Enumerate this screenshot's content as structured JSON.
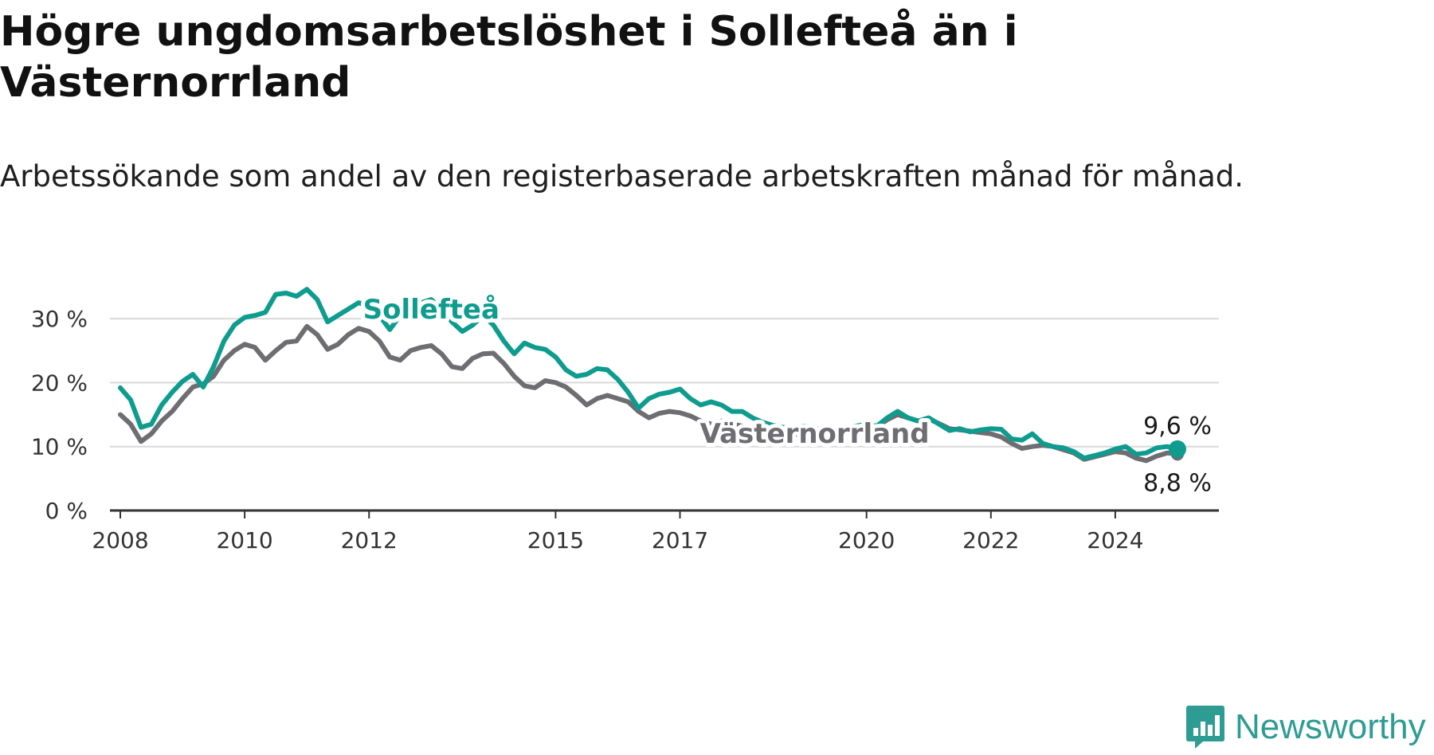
{
  "header": {
    "title": "Högre ungdomsarbetslöshet i Sollefteå än i Västernorrland",
    "subtitle": "Arbetssökande som andel av den registerbaserade arbetskraften månad för månad."
  },
  "brand": {
    "name": "Newsworthy",
    "icon": "newsworthy-logo-icon",
    "color": "#2f9c94"
  },
  "colors": {
    "series_1": "#0e9c8e",
    "series_2": "#6e6d72",
    "grid": "#d9d9d9",
    "axis": "#333333"
  },
  "chart_data": {
    "type": "line",
    "title": "Högre ungdomsarbetslöshet i Sollefteå än i Västernorrland",
    "subtitle": "Arbetssökande som andel av den registerbaserade arbetskraften månad för månad.",
    "xlabel": "",
    "ylabel": "",
    "xlim": [
      "2007-11",
      "2025-09"
    ],
    "ylim": [
      0,
      35
    ],
    "grid": true,
    "legend": "inline labels",
    "x_ticks": [
      "2008",
      "2010",
      "2012",
      "2015",
      "2017",
      "2020",
      "2022",
      "2024"
    ],
    "y_ticks": [
      {
        "value": 0,
        "label": "0 %"
      },
      {
        "value": 10,
        "label": "10 %"
      },
      {
        "value": 20,
        "label": "20 %"
      },
      {
        "value": 30,
        "label": "30 %"
      }
    ],
    "series": [
      {
        "name": "Sollefteå",
        "color": "#0e9c8e",
        "end_label": "9,6 %",
        "points": [
          [
            "2008-01",
            19.2
          ],
          [
            "2008-03",
            17.3
          ],
          [
            "2008-05",
            13.0
          ],
          [
            "2008-07",
            13.5
          ],
          [
            "2008-09",
            16.5
          ],
          [
            "2008-11",
            18.5
          ],
          [
            "2009-01",
            20.2
          ],
          [
            "2009-03",
            21.3
          ],
          [
            "2009-05",
            19.3
          ],
          [
            "2009-07",
            22.5
          ],
          [
            "2009-09",
            26.5
          ],
          [
            "2009-11",
            29.0
          ],
          [
            "2010-01",
            30.2
          ],
          [
            "2010-03",
            30.5
          ],
          [
            "2010-05",
            31.0
          ],
          [
            "2010-07",
            33.8
          ],
          [
            "2010-09",
            34.0
          ],
          [
            "2010-11",
            33.5
          ],
          [
            "2011-01",
            34.6
          ],
          [
            "2011-03",
            33.0
          ],
          [
            "2011-05",
            29.5
          ],
          [
            "2011-07",
            30.5
          ],
          [
            "2011-09",
            31.5
          ],
          [
            "2011-11",
            32.5
          ],
          [
            "2012-01",
            32.0
          ],
          [
            "2012-03",
            30.5
          ],
          [
            "2012-05",
            28.3
          ],
          [
            "2012-07",
            30.5
          ],
          [
            "2012-09",
            31.5
          ],
          [
            "2012-11",
            32.5
          ],
          [
            "2013-01",
            33.0
          ],
          [
            "2013-03",
            31.5
          ],
          [
            "2013-05",
            29.5
          ],
          [
            "2013-07",
            28.0
          ],
          [
            "2013-09",
            29.0
          ],
          [
            "2013-11",
            30.5
          ],
          [
            "2014-01",
            29.0
          ],
          [
            "2014-03",
            26.5
          ],
          [
            "2014-05",
            24.5
          ],
          [
            "2014-07",
            26.2
          ],
          [
            "2014-09",
            25.5
          ],
          [
            "2014-11",
            25.2
          ],
          [
            "2015-01",
            24.0
          ],
          [
            "2015-03",
            22.0
          ],
          [
            "2015-05",
            21.0
          ],
          [
            "2015-07",
            21.3
          ],
          [
            "2015-09",
            22.2
          ],
          [
            "2015-11",
            22.0
          ],
          [
            "2016-01",
            20.5
          ],
          [
            "2016-03",
            18.5
          ],
          [
            "2016-05",
            16.0
          ],
          [
            "2016-07",
            17.5
          ],
          [
            "2016-09",
            18.2
          ],
          [
            "2016-11",
            18.5
          ],
          [
            "2017-01",
            19.0
          ],
          [
            "2017-03",
            17.5
          ],
          [
            "2017-05",
            16.5
          ],
          [
            "2017-07",
            17.0
          ],
          [
            "2017-09",
            16.5
          ],
          [
            "2017-11",
            15.5
          ],
          [
            "2018-01",
            15.5
          ],
          [
            "2018-03",
            14.5
          ],
          [
            "2018-05",
            13.8
          ],
          [
            "2018-07",
            13.3
          ],
          [
            "2018-09",
            13.0
          ],
          [
            "2018-11",
            13.0
          ],
          [
            "2019-01",
            13.2
          ],
          [
            "2019-03",
            12.8
          ],
          [
            "2019-05",
            12.6
          ],
          [
            "2019-07",
            12.8
          ],
          [
            "2019-09",
            13.0
          ],
          [
            "2019-11",
            13.2
          ],
          [
            "2020-01",
            13.5
          ],
          [
            "2020-03",
            13.2
          ],
          [
            "2020-05",
            14.5
          ],
          [
            "2020-07",
            15.5
          ],
          [
            "2020-09",
            14.5
          ],
          [
            "2020-11",
            14.0
          ],
          [
            "2021-01",
            14.5
          ],
          [
            "2021-03",
            13.5
          ],
          [
            "2021-05",
            12.5
          ],
          [
            "2021-07",
            12.8
          ],
          [
            "2021-09",
            12.3
          ],
          [
            "2021-11",
            12.6
          ],
          [
            "2022-01",
            12.8
          ],
          [
            "2022-03",
            12.7
          ],
          [
            "2022-05",
            11.2
          ],
          [
            "2022-07",
            11.0
          ],
          [
            "2022-09",
            12.0
          ],
          [
            "2022-11",
            10.5
          ],
          [
            "2023-01",
            10.0
          ],
          [
            "2023-03",
            9.8
          ],
          [
            "2023-05",
            9.2
          ],
          [
            "2023-07",
            8.2
          ],
          [
            "2023-09",
            8.6
          ],
          [
            "2023-11",
            9.0
          ],
          [
            "2024-01",
            9.6
          ],
          [
            "2024-03",
            10.0
          ],
          [
            "2024-05",
            8.8
          ],
          [
            "2024-07",
            9.0
          ],
          [
            "2024-09",
            9.8
          ],
          [
            "2024-11",
            10.0
          ],
          [
            "2025-01",
            9.6
          ]
        ]
      },
      {
        "name": "Västernorrland",
        "color": "#6e6d72",
        "end_label": "8,8 %",
        "points": [
          [
            "2008-01",
            15.0
          ],
          [
            "2008-03",
            13.5
          ],
          [
            "2008-05",
            10.8
          ],
          [
            "2008-07",
            12.0
          ],
          [
            "2008-09",
            14.0
          ],
          [
            "2008-11",
            15.5
          ],
          [
            "2009-01",
            17.5
          ],
          [
            "2009-03",
            19.3
          ],
          [
            "2009-05",
            19.8
          ],
          [
            "2009-07",
            21.0
          ],
          [
            "2009-09",
            23.5
          ],
          [
            "2009-11",
            25.0
          ],
          [
            "2010-01",
            26.0
          ],
          [
            "2010-03",
            25.5
          ],
          [
            "2010-05",
            23.5
          ],
          [
            "2010-07",
            25.0
          ],
          [
            "2010-09",
            26.3
          ],
          [
            "2010-11",
            26.5
          ],
          [
            "2011-01",
            28.8
          ],
          [
            "2011-03",
            27.5
          ],
          [
            "2011-05",
            25.2
          ],
          [
            "2011-07",
            26.0
          ],
          [
            "2011-09",
            27.5
          ],
          [
            "2011-11",
            28.5
          ],
          [
            "2012-01",
            28.0
          ],
          [
            "2012-03",
            26.5
          ],
          [
            "2012-05",
            24.0
          ],
          [
            "2012-07",
            23.5
          ],
          [
            "2012-09",
            25.0
          ],
          [
            "2012-11",
            25.5
          ],
          [
            "2013-01",
            25.8
          ],
          [
            "2013-03",
            24.5
          ],
          [
            "2013-05",
            22.5
          ],
          [
            "2013-07",
            22.2
          ],
          [
            "2013-09",
            23.8
          ],
          [
            "2013-11",
            24.5
          ],
          [
            "2014-01",
            24.6
          ],
          [
            "2014-03",
            23.0
          ],
          [
            "2014-05",
            21.0
          ],
          [
            "2014-07",
            19.5
          ],
          [
            "2014-09",
            19.2
          ],
          [
            "2014-11",
            20.3
          ],
          [
            "2015-01",
            20.0
          ],
          [
            "2015-03",
            19.3
          ],
          [
            "2015-05",
            18.0
          ],
          [
            "2015-07",
            16.5
          ],
          [
            "2015-09",
            17.5
          ],
          [
            "2015-11",
            18.0
          ],
          [
            "2016-01",
            17.5
          ],
          [
            "2016-03",
            17.0
          ],
          [
            "2016-05",
            15.5
          ],
          [
            "2016-07",
            14.5
          ],
          [
            "2016-09",
            15.2
          ],
          [
            "2016-11",
            15.5
          ],
          [
            "2017-01",
            15.3
          ],
          [
            "2017-03",
            14.8
          ],
          [
            "2017-05",
            14.0
          ],
          [
            "2017-07",
            13.5
          ],
          [
            "2017-09",
            14.0
          ],
          [
            "2017-11",
            13.5
          ],
          [
            "2018-01",
            13.2
          ],
          [
            "2018-03",
            12.8
          ],
          [
            "2018-05",
            12.3
          ],
          [
            "2018-07",
            12.0
          ],
          [
            "2018-09",
            11.8
          ],
          [
            "2018-11",
            11.8
          ],
          [
            "2019-01",
            12.0
          ],
          [
            "2019-03",
            11.8
          ],
          [
            "2019-05",
            11.5
          ],
          [
            "2019-07",
            11.8
          ],
          [
            "2019-09",
            12.3
          ],
          [
            "2019-11",
            12.8
          ],
          [
            "2020-01",
            13.0
          ],
          [
            "2020-03",
            13.0
          ],
          [
            "2020-05",
            14.2
          ],
          [
            "2020-07",
            15.0
          ],
          [
            "2020-09",
            14.5
          ],
          [
            "2020-11",
            14.0
          ],
          [
            "2021-01",
            14.3
          ],
          [
            "2021-03",
            13.6
          ],
          [
            "2021-05",
            12.8
          ],
          [
            "2021-07",
            12.6
          ],
          [
            "2021-09",
            12.4
          ],
          [
            "2021-11",
            12.2
          ],
          [
            "2022-01",
            12.0
          ],
          [
            "2022-03",
            11.5
          ],
          [
            "2022-05",
            10.5
          ],
          [
            "2022-07",
            9.7
          ],
          [
            "2022-09",
            10.0
          ],
          [
            "2022-11",
            10.2
          ],
          [
            "2023-01",
            10.0
          ],
          [
            "2023-03",
            9.5
          ],
          [
            "2023-05",
            9.0
          ],
          [
            "2023-07",
            8.0
          ],
          [
            "2023-09",
            8.4
          ],
          [
            "2023-11",
            8.8
          ],
          [
            "2024-01",
            9.2
          ],
          [
            "2024-03",
            9.0
          ],
          [
            "2024-05",
            8.2
          ],
          [
            "2024-07",
            7.8
          ],
          [
            "2024-09",
            8.5
          ],
          [
            "2024-11",
            9.0
          ],
          [
            "2025-01",
            8.8
          ]
        ]
      }
    ],
    "annotations": [
      {
        "text": "Sollefteå",
        "series": "Sollefteå",
        "at": "2013-01"
      },
      {
        "text": "Västernorrland",
        "series": "Västernorrland",
        "at": "2019-03"
      }
    ]
  }
}
